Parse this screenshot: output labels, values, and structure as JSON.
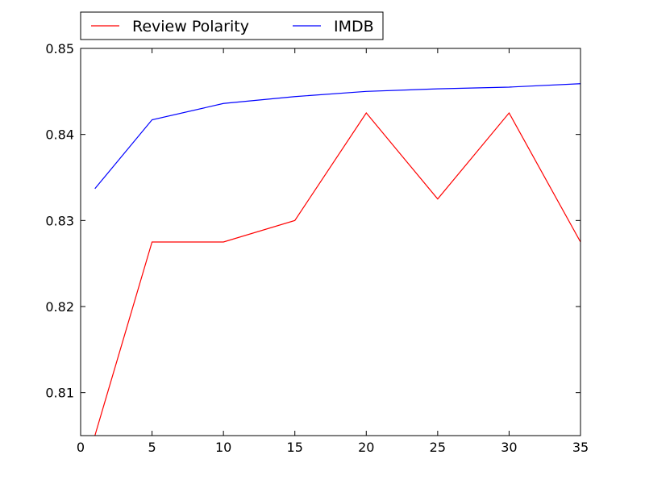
{
  "chart_data": {
    "type": "line",
    "title": "",
    "xlabel": "",
    "ylabel": "",
    "xlim": [
      0,
      35
    ],
    "ylim": [
      0.805,
      0.85
    ],
    "grid": false,
    "legend_placement": "top-left, above plot",
    "x_ticks": [
      {
        "value": 0,
        "label": "0"
      },
      {
        "value": 5,
        "label": "5"
      },
      {
        "value": 10,
        "label": "10"
      },
      {
        "value": 15,
        "label": "15"
      },
      {
        "value": 20,
        "label": "20"
      },
      {
        "value": 25,
        "label": "25"
      },
      {
        "value": 30,
        "label": "30"
      },
      {
        "value": 35,
        "label": "35"
      }
    ],
    "y_ticks": [
      {
        "value": 0.81,
        "label": "0.81"
      },
      {
        "value": 0.82,
        "label": "0.82"
      },
      {
        "value": 0.83,
        "label": "0.83"
      },
      {
        "value": 0.84,
        "label": "0.84"
      },
      {
        "value": 0.85,
        "label": "0.85"
      }
    ],
    "series": [
      {
        "name": "Review Polarity",
        "color": "#ff0000",
        "x": [
          1,
          5,
          10,
          15,
          20,
          25,
          30,
          35
        ],
        "values": [
          0.805,
          0.8275,
          0.8275,
          0.83,
          0.8425,
          0.8325,
          0.8425,
          0.8275
        ]
      },
      {
        "name": "IMDB",
        "color": "#0000ff",
        "x": [
          1,
          5,
          10,
          15,
          20,
          25,
          30,
          35
        ],
        "values": [
          0.8337,
          0.8417,
          0.8436,
          0.8444,
          0.845,
          0.8453,
          0.8455,
          0.8459
        ]
      }
    ]
  }
}
